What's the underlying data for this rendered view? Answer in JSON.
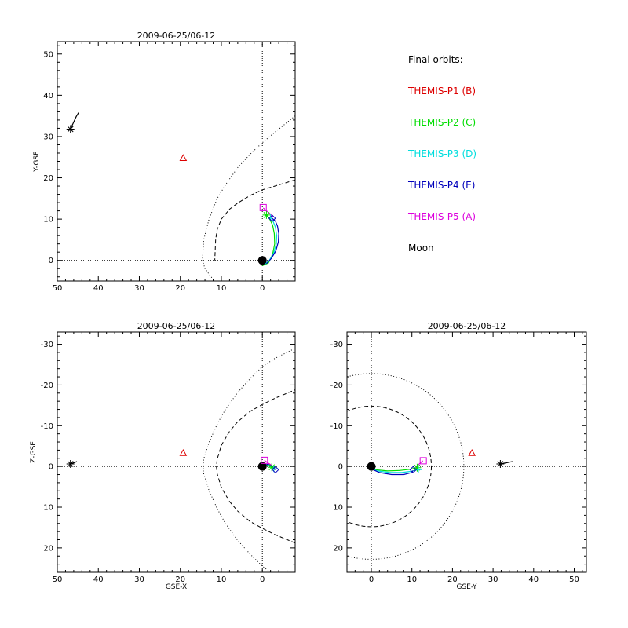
{
  "chart_data": {
    "type": "orbit-plot",
    "legend": {
      "title": "Final orbits:",
      "placement": "top-right",
      "items": [
        {
          "label": "THEMIS-P1 (B)",
          "color": "#dd0000"
        },
        {
          "label": "THEMIS-P2 (C)",
          "color": "#00dd00"
        },
        {
          "label": "THEMIS-P3 (D)",
          "color": "#00dddd"
        },
        {
          "label": "THEMIS-P4 (E)",
          "color": "#0000bb"
        },
        {
          "label": "THEMIS-P5 (A)",
          "color": "#dd00dd"
        },
        {
          "label": "Moon",
          "color": "#000000"
        }
      ]
    },
    "panels": [
      {
        "id": "xy",
        "title": "2009-06-25/06-12",
        "xlabel": "",
        "ylabel": "Y-GSE",
        "xlim": [
          50,
          -8
        ],
        "ylim": [
          53,
          -5
        ],
        "xticks": [
          50,
          40,
          30,
          20,
          10,
          0
        ],
        "yticks": [
          0,
          10,
          20,
          30,
          40,
          50
        ],
        "ref_lines": {
          "x0": true,
          "y0": true
        },
        "earth": [
          0,
          0
        ],
        "magnetopause": [
          [
            -8,
            19.5
          ],
          [
            -3,
            18
          ],
          [
            0,
            17.1
          ],
          [
            3,
            15.7
          ],
          [
            6,
            13.9
          ],
          [
            8,
            12.4
          ],
          [
            10,
            10
          ],
          [
            11,
            7.5
          ],
          [
            11.4,
            5
          ],
          [
            11.6,
            0
          ]
        ],
        "bow_shock": [
          [
            -8,
            35
          ],
          [
            -3,
            31
          ],
          [
            0,
            28.5
          ],
          [
            3,
            25.7
          ],
          [
            6,
            22.5
          ],
          [
            9,
            18.3
          ],
          [
            11,
            15
          ],
          [
            13,
            10
          ],
          [
            14.3,
            5
          ],
          [
            14.6,
            0
          ],
          [
            14,
            -2
          ],
          [
            12.5,
            -4
          ],
          [
            11.5,
            -5
          ]
        ],
        "orbits": [
          {
            "name": "THEMIS-P2 (C)",
            "color": "#00dd00",
            "points": [
              [
                0,
                -1.3
              ],
              [
                -1.5,
                -0.6
              ],
              [
                -2.5,
                1.5
              ],
              [
                -3,
                4
              ],
              [
                -2.9,
                6.5
              ],
              [
                -2.5,
                8.5
              ],
              [
                -1.8,
                10
              ],
              [
                -1,
                11
              ]
            ]
          },
          {
            "name": "THEMIS-P3 (D)",
            "color": "#00dddd",
            "points": [
              [
                -0.5,
                -1
              ],
              [
                -1.7,
                0
              ],
              [
                -2.8,
                1.8
              ],
              [
                -3.4,
                4
              ],
              [
                -3.5,
                6
              ],
              [
                -3.2,
                8
              ],
              [
                -2.6,
                9.5
              ],
              [
                -2,
                10.5
              ]
            ]
          },
          {
            "name": "THEMIS-P4 (E)",
            "color": "#0000bb",
            "points": [
              [
                -1,
                -0.8
              ],
              [
                -2.2,
                0.5
              ],
              [
                -3.3,
                2.3
              ],
              [
                -3.9,
                4.5
              ],
              [
                -4,
                6.5
              ],
              [
                -3.7,
                8.3
              ],
              [
                -3.2,
                9.5
              ],
              [
                -2.4,
                10.2
              ]
            ]
          },
          {
            "name": "THEMIS-P5 (A)",
            "color": "#dd00dd",
            "points": [
              [
                -0.2,
                12.7
              ],
              [
                -1,
                12
              ],
              [
                -2,
                11.2
              ],
              [
                -2.8,
                10.5
              ]
            ]
          }
        ],
        "markers": [
          {
            "name": "THEMIS-P1 (B)",
            "symbol": "triangle",
            "color": "#dd0000",
            "x": 19.3,
            "y": 24.8
          },
          {
            "name": "THEMIS-P2 (C)",
            "symbol": "asterisk",
            "color": "#00dd00",
            "x": -1,
            "y": 11
          },
          {
            "name": "THEMIS-P3 (D)",
            "symbol": "plus",
            "color": "#00dddd",
            "x": -2,
            "y": 10.5
          },
          {
            "name": "THEMIS-P4 (E)",
            "symbol": "diamond",
            "color": "#0000bb",
            "x": -2.4,
            "y": 10.2
          },
          {
            "name": "THEMIS-P5 (A)",
            "symbol": "square",
            "color": "#dd00dd",
            "x": -0.2,
            "y": 12.8
          },
          {
            "name": "Moon",
            "symbol": "asterisk",
            "color": "#000000",
            "x": 46.8,
            "y": 31.8
          }
        ],
        "moon_track": [
          [
            46.8,
            31.8
          ],
          [
            46.1,
            33.3
          ],
          [
            45.4,
            34.8
          ],
          [
            44.8,
            35.8
          ]
        ]
      },
      {
        "id": "xz",
        "title": "2009-06-25/06-12",
        "xlabel": "GSE-X",
        "ylabel": "Z-GSE",
        "xlim": [
          50,
          -8
        ],
        "ylim": [
          -33,
          26
        ],
        "xticks": [
          50,
          40,
          30,
          20,
          10,
          0
        ],
        "yticks": [
          20,
          10,
          0,
          -10,
          -20,
          -30
        ],
        "ref_lines": {
          "x0": true,
          "y0": true
        },
        "earth": [
          0,
          0
        ],
        "magnetopause": [
          [
            -8,
            18.8
          ],
          [
            -3,
            16.7
          ],
          [
            0,
            15.2
          ],
          [
            3,
            13.5
          ],
          [
            6,
            11
          ],
          [
            8,
            8.6
          ],
          [
            10,
            5.2
          ],
          [
            11,
            1.8
          ],
          [
            11.2,
            0
          ],
          [
            11,
            -1.8
          ],
          [
            10,
            -5.2
          ],
          [
            8,
            -8.6
          ],
          [
            6,
            -11
          ],
          [
            3,
            -13.5
          ],
          [
            0,
            -15.2
          ],
          [
            -3,
            -16.7
          ],
          [
            -8,
            -18.8
          ]
        ],
        "bow_shock": [
          [
            -2,
            26
          ],
          [
            0,
            24.5
          ],
          [
            3,
            21.5
          ],
          [
            6,
            18.2
          ],
          [
            9,
            14
          ],
          [
            11,
            10.4
          ],
          [
            13,
            5.9
          ],
          [
            14.3,
            1.8
          ],
          [
            14.5,
            0
          ],
          [
            14.3,
            -1.8
          ],
          [
            13,
            -5.9
          ],
          [
            11,
            -10.4
          ],
          [
            9,
            -14
          ],
          [
            6,
            -18.2
          ],
          [
            3,
            -21.5
          ],
          [
            0,
            -24.5
          ],
          [
            -3,
            -26.5
          ],
          [
            -6,
            -28
          ],
          [
            -8,
            -29
          ]
        ],
        "orbits": [
          {
            "name": "THEMIS-P2 (C)",
            "color": "#00dd00",
            "points": [
              [
                0,
                0
              ],
              [
                -0.8,
                -0.4
              ],
              [
                -1.5,
                -0.3
              ],
              [
                -2.3,
                0.2
              ]
            ]
          },
          {
            "name": "THEMIS-P3 (D)",
            "color": "#00dddd",
            "points": [
              [
                -0.3,
                -0.2
              ],
              [
                -1.2,
                -0.5
              ],
              [
                -2.2,
                0
              ],
              [
                -2.8,
                0.6
              ]
            ]
          },
          {
            "name": "THEMIS-P4 (E)",
            "color": "#0000bb",
            "points": [
              [
                -0.5,
                -0.3
              ],
              [
                -1.6,
                -0.6
              ],
              [
                -2.6,
                0.1
              ],
              [
                -3.2,
                0.8
              ]
            ]
          },
          {
            "name": "THEMIS-P5 (A)",
            "color": "#dd00dd",
            "points": [
              [
                -0.5,
                -1.5
              ],
              [
                -1.3,
                -0.9
              ],
              [
                -2.1,
                -0.4
              ]
            ]
          }
        ],
        "markers": [
          {
            "name": "THEMIS-P1 (B)",
            "symbol": "triangle",
            "color": "#dd0000",
            "x": 19.3,
            "y": -3.3
          },
          {
            "name": "THEMIS-P2 (C)",
            "symbol": "asterisk",
            "color": "#00dd00",
            "x": -2.3,
            "y": 0.2
          },
          {
            "name": "THEMIS-P3 (D)",
            "symbol": "plus",
            "color": "#00dddd",
            "x": -2.8,
            "y": 0.6
          },
          {
            "name": "THEMIS-P4 (E)",
            "symbol": "diamond",
            "color": "#0000bb",
            "x": -3.2,
            "y": 0.8
          },
          {
            "name": "THEMIS-P5 (A)",
            "symbol": "square",
            "color": "#dd00dd",
            "x": -0.5,
            "y": -1.5
          },
          {
            "name": "Moon",
            "symbol": "asterisk",
            "color": "#000000",
            "x": 46.8,
            "y": -0.6
          }
        ],
        "moon_track": [
          [
            46.8,
            -0.6
          ],
          [
            46,
            -0.9
          ],
          [
            45.2,
            -1.2
          ]
        ]
      },
      {
        "id": "yz",
        "title": "2009-06-25/06-12",
        "xlabel": "GSE-Y",
        "ylabel": "",
        "xlim": [
          -6,
          53
        ],
        "ylim": [
          -33,
          26
        ],
        "xticks": [
          0,
          10,
          20,
          30,
          40,
          50
        ],
        "yticks": [
          20,
          10,
          0,
          -10,
          -20,
          -30
        ],
        "ref_lines": {
          "x0": true,
          "y0": true
        },
        "earth": [
          0,
          0
        ],
        "circles": [
          {
            "style": "dashed",
            "radius": 14.8
          },
          {
            "style": "dotted",
            "radius": 22.8
          }
        ],
        "orbits": [
          {
            "name": "THEMIS-P2 (C)",
            "color": "#00dd00",
            "points": [
              [
                -1,
                0.2
              ],
              [
                1,
                0.8
              ],
              [
                4,
                1.1
              ],
              [
                7,
                1
              ],
              [
                9.5,
                0.7
              ],
              [
                11.3,
                0.3
              ]
            ]
          },
          {
            "name": "THEMIS-P3 (D)",
            "color": "#00dddd",
            "points": [
              [
                -0.8,
                0.3
              ],
              [
                1.5,
                1.1
              ],
              [
                4.5,
                1.5
              ],
              [
                7.5,
                1.5
              ],
              [
                9.8,
                1.2
              ],
              [
                11.5,
                0.8
              ]
            ]
          },
          {
            "name": "THEMIS-P4 (E)",
            "color": "#0000bb",
            "points": [
              [
                -0.5,
                0.4
              ],
              [
                2,
                1.5
              ],
              [
                5,
                2
              ],
              [
                8,
                2
              ],
              [
                10,
                1.5
              ],
              [
                10.3,
                1
              ]
            ]
          },
          {
            "name": "THEMIS-P5 (A)",
            "color": "#dd00dd",
            "points": [
              [
                11,
                0.2
              ],
              [
                11.8,
                -0.6
              ],
              [
                12.7,
                -1.4
              ]
            ]
          }
        ],
        "markers": [
          {
            "name": "THEMIS-P1 (B)",
            "symbol": "triangle",
            "color": "#dd0000",
            "x": 24.8,
            "y": -3.3
          },
          {
            "name": "THEMIS-P2 (C)",
            "symbol": "asterisk",
            "color": "#00dd00",
            "x": 11.3,
            "y": 0.3
          },
          {
            "name": "THEMIS-P3 (D)",
            "symbol": "plus",
            "color": "#00dddd",
            "x": 11.6,
            "y": 0.8
          },
          {
            "name": "THEMIS-P4 (E)",
            "symbol": "diamond",
            "color": "#0000bb",
            "x": 10.3,
            "y": 0.8
          },
          {
            "name": "THEMIS-P5 (A)",
            "symbol": "square",
            "color": "#dd00dd",
            "x": 12.8,
            "y": -1.4
          },
          {
            "name": "Moon",
            "symbol": "asterisk",
            "color": "#000000",
            "x": 31.8,
            "y": -0.6
          }
        ],
        "moon_track": [
          [
            31.8,
            -0.6
          ],
          [
            33.3,
            -0.9
          ],
          [
            34.8,
            -1.2
          ]
        ]
      }
    ]
  }
}
